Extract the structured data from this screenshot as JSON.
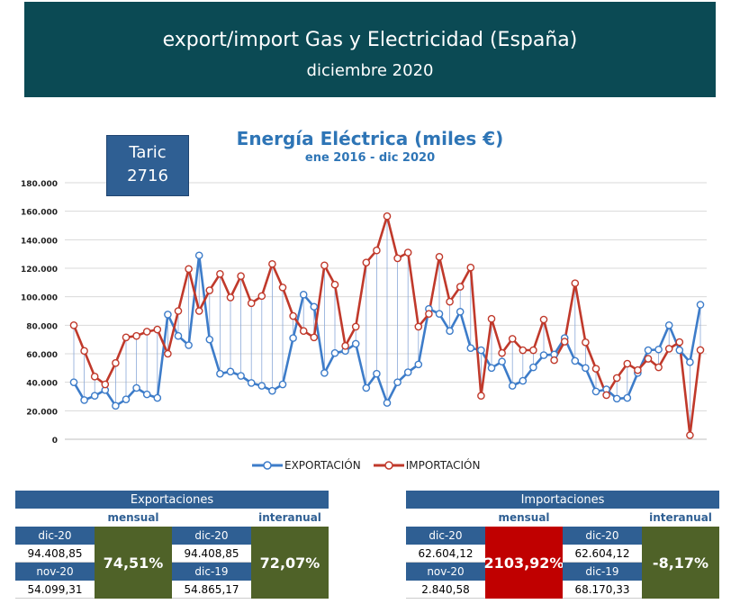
{
  "header": {
    "title": "export/import Gas y Electricidad (España)",
    "subtitle": "diciembre 2020"
  },
  "taric": {
    "label": "Taric",
    "code": "2716"
  },
  "chart_data": {
    "type": "line",
    "title": "Energía Eléctrica (miles €)",
    "subtitle": "ene 2016 - dic 2020",
    "ylim": [
      0,
      180000
    ],
    "yticks": [
      "0",
      "20.000",
      "40.000",
      "60.000",
      "80.000",
      "100.000",
      "120.000",
      "140.000",
      "160.000",
      "180.000"
    ],
    "grid": true,
    "legend_position": "bottom",
    "colors": {
      "export": "#3d7cc9",
      "import": "#c0392b",
      "drop": "#8aa8d8"
    },
    "series": [
      {
        "name": "EXPORTACIÓN",
        "values": [
          40000,
          27500,
          30500,
          34500,
          23500,
          28000,
          36000,
          31500,
          29000,
          87500,
          72500,
          66000,
          129000,
          70000,
          46000,
          47500,
          44500,
          39500,
          37500,
          34000,
          38500,
          71000,
          101500,
          93000,
          46500,
          60500,
          62000,
          67000,
          36000,
          46000,
          25500,
          40000,
          47000,
          52500,
          91500,
          88000,
          76000,
          89500,
          64000,
          62500,
          50000,
          54500,
          37500,
          41000,
          50500,
          59000,
          59500,
          71000,
          55000,
          50000,
          33500,
          35000,
          28500,
          29000,
          46500,
          62500,
          63000,
          80000,
          62500,
          54099,
          94409
        ]
      },
      {
        "name": "IMPORTACIÓN",
        "values": [
          80000,
          62000,
          44000,
          38500,
          53500,
          71500,
          72500,
          75500,
          77000,
          60000,
          90000,
          119500,
          90000,
          104500,
          116000,
          99500,
          114500,
          95500,
          100500,
          123000,
          106500,
          86500,
          76000,
          71500,
          122000,
          108500,
          65500,
          79000,
          124000,
          132500,
          156500,
          127000,
          131000,
          79000,
          88000,
          128000,
          96500,
          107000,
          120500,
          30500,
          84500,
          60500,
          70500,
          62500,
          62500,
          84000,
          55500,
          68500,
          109500,
          68000,
          49500,
          31000,
          43000,
          53000,
          48500,
          56500,
          50500,
          63500,
          68170,
          2841,
          62604
        ]
      }
    ]
  },
  "tables": {
    "exp": {
      "header": "Exportaciones",
      "mensual": "mensual",
      "interanual": "interanual",
      "p1": "dic-20",
      "v1": "94.408,85",
      "p2": "nov-20",
      "v2": "54.099,31",
      "pct1": "74,51%",
      "p3": "dic-20",
      "v3": "94.408,85",
      "p4": "dic-19",
      "v4": "54.865,17",
      "pct2": "72,07%"
    },
    "imp": {
      "header": "Importaciones",
      "mensual": "mensual",
      "interanual": "interanual",
      "p1": "dic-20",
      "v1": "62.604,12",
      "p2": "nov-20",
      "v2": "2.840,58",
      "pct1": "2103,92%",
      "p3": "dic-20",
      "v3": "62.604,12",
      "p4": "dic-19",
      "v4": "68.170,33",
      "pct2": "-8,17%"
    }
  },
  "colors": {
    "banner": "#0b4a54",
    "blue_header": "#2f5f93",
    "green": "#4f6228",
    "red": "#c00000"
  }
}
